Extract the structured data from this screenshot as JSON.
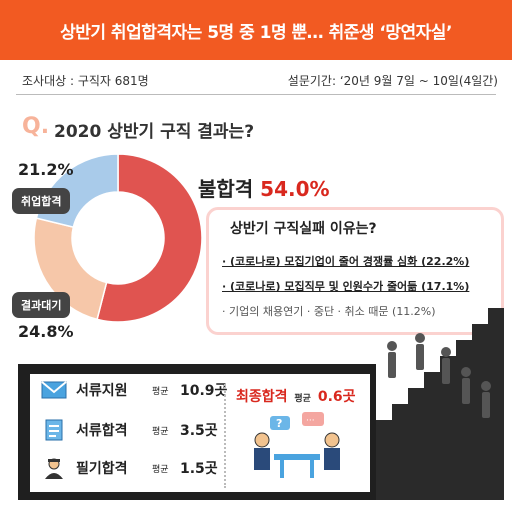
{
  "banner": {
    "text": "상반기 취업합격자는 5명 중 1명 뿐… 취준생 ‘망연자실’"
  },
  "meta": {
    "target": "조사대상 :  구직자 681명",
    "period": "설문기간: ‘20년 9월 7일 ~ 10일(4일간)"
  },
  "question": {
    "mark": "Q.",
    "title": "2020 상반기 구직 결과는?"
  },
  "colors": {
    "fail": "#e05450",
    "hired": "#a9cbea",
    "waiting": "#f6c7a9",
    "accent": "#d9281e",
    "banner": "#f25a22"
  },
  "chart_data": {
    "type": "pie",
    "title": "2020 상반기 구직 결과는?",
    "slices": [
      {
        "label": "취업합격",
        "value": 21.2,
        "display": "21.2%"
      },
      {
        "label": "결과대기",
        "value": 24.8,
        "display": "24.8%"
      },
      {
        "label": "불합격",
        "value": 54.0,
        "display": "54.0%"
      }
    ]
  },
  "reasons": {
    "title": "상반기 구직실패 이유는?",
    "items": [
      "· (코로나로) 모집기업이 줄어 경쟁률 심화 (22.2%)",
      "· (코로나로) 모집직무 및 인원수가 줄어듦 (17.1%)",
      "· 기업의 채용연기 · 중단 · 취소 때문 (11.2%)"
    ]
  },
  "stats": {
    "rows": [
      {
        "label": "서류지원",
        "sub": "평균",
        "value": "10.9곳",
        "icon": "envelope-icon"
      },
      {
        "label": "서류합격",
        "sub": "평균",
        "value": "3.5곳",
        "icon": "clipboard-icon"
      },
      {
        "label": "필기합격",
        "sub": "평균",
        "value": "1.5곳",
        "icon": "person-icon"
      }
    ],
    "final": {
      "label": "최종합격",
      "sub": "평균",
      "value": "0.6곳",
      "icon": "interview-icon"
    }
  }
}
